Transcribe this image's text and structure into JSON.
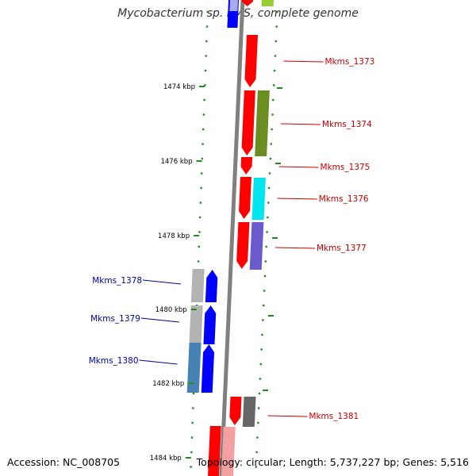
{
  "title": "Mycobacterium sp. KMS, complete genome",
  "footer": {
    "accession": "Accession: NC_008705",
    "summary": "Topology: circular; Length: 5,737,227 bp; Genes: 5,516"
  },
  "colors": {
    "backbone": "#808080",
    "tick": "#228b22",
    "forward_label": "#cc0000",
    "reverse_label": "#0000aa"
  },
  "ticks": [
    {
      "label": "1474 kbp"
    },
    {
      "label": "1476 kbp"
    },
    {
      "label": "1478 kbp"
    },
    {
      "label": "1480 kbp"
    },
    {
      "label": "1482 kbp"
    },
    {
      "label": "1484 kbp"
    }
  ],
  "genes": [
    {
      "id": "Mkms_1373",
      "label": "Mkms_1373",
      "strand": "forward",
      "cds_color": "#ff0000",
      "feature_color": "#99cc33"
    },
    {
      "id": "Mkms_1374",
      "label": "Mkms_1374",
      "strand": "forward",
      "cds_color": "#ff0000",
      "feature_color": "#6b8e23"
    },
    {
      "id": "Mkms_1375",
      "label": "Mkms_1375",
      "strand": "forward",
      "cds_color": "#ff0000",
      "feature_color": ""
    },
    {
      "id": "Mkms_1376",
      "label": "Mkms_1376",
      "strand": "forward",
      "cds_color": "#ff0000",
      "feature_color": "#00e5ee"
    },
    {
      "id": "Mkms_1377",
      "label": "Mkms_1377",
      "strand": "forward",
      "cds_color": "#ff0000",
      "feature_color": "#6a5acd"
    },
    {
      "id": "Mkms_1378",
      "label": "Mkms_1378",
      "strand": "reverse",
      "cds_color": "#0000ff",
      "feature_color": "#b3b3b3"
    },
    {
      "id": "Mkms_1379",
      "label": "Mkms_1379",
      "strand": "reverse",
      "cds_color": "#0000ff",
      "feature_color": "#b3b3b3"
    },
    {
      "id": "Mkms_1380",
      "label": "Mkms_1380",
      "strand": "reverse",
      "cds_color": "#0000ff",
      "feature_color": "#4682b4"
    },
    {
      "id": "Mkms_1381",
      "label": "Mkms_1381",
      "strand": "forward",
      "cds_color": "#ff0000",
      "feature_color": "#666666"
    }
  ]
}
